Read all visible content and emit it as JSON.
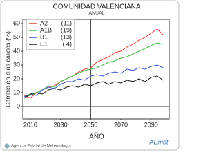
{
  "chart_data": {
    "type": "line",
    "title": "COMUNIDAD VALENCIANA",
    "subtitle": "ANUAL",
    "xlabel": "AÑO",
    "ylabel": "Cambio en días cálidos (%)",
    "x": [
      2006,
      2010,
      2014,
      2018,
      2022,
      2026,
      2030,
      2034,
      2038,
      2042,
      2046,
      2050,
      2054,
      2058,
      2062,
      2066,
      2070,
      2074,
      2078,
      2082,
      2086,
      2090,
      2094,
      2098
    ],
    "series": [
      {
        "name": "A2",
        "count": "(11)",
        "color": "#e03a2e",
        "values": [
          8,
          6,
          10,
          12,
          14,
          15,
          18,
          20,
          22,
          25,
          27,
          28,
          32,
          34,
          36,
          39,
          40,
          43,
          45,
          48,
          50,
          53,
          56,
          52
        ]
      },
      {
        "name": "A1B",
        "count": "(19)",
        "color": "#3fbf3f",
        "values": [
          7,
          8,
          10,
          12,
          15,
          14,
          18,
          20,
          22,
          24,
          26,
          27,
          28,
          30,
          32,
          33,
          35,
          36,
          38,
          40,
          42,
          44,
          46,
          45
        ]
      },
      {
        "name": "B1",
        "count": "(13)",
        "color": "#3050d0",
        "values": [
          7,
          9,
          8,
          12,
          14,
          13,
          16,
          18,
          18,
          20,
          19,
          22,
          23,
          22,
          24,
          25,
          24,
          27,
          26,
          28,
          27,
          29,
          30,
          28
        ]
      },
      {
        "name": "E1",
        "count": "( 4)",
        "color": "#111111",
        "values": [
          6,
          9,
          10,
          9,
          12,
          13,
          12,
          14,
          15,
          14,
          16,
          15,
          17,
          18,
          16,
          18,
          17,
          19,
          18,
          20,
          18,
          21,
          22,
          19
        ]
      }
    ],
    "xlim": [
      2005,
      2102
    ],
    "ylim": [
      -9,
      63
    ],
    "xticks": [
      2010,
      2030,
      2050,
      2070,
      2090
    ],
    "yticks": [
      0,
      10,
      20,
      30,
      40,
      50,
      60
    ],
    "reference_x": 2050,
    "reference_y": 0,
    "grid": false,
    "legend": "upper left"
  },
  "footer": "Agencia Estatal de Meteorología",
  "logo": "AEmet"
}
